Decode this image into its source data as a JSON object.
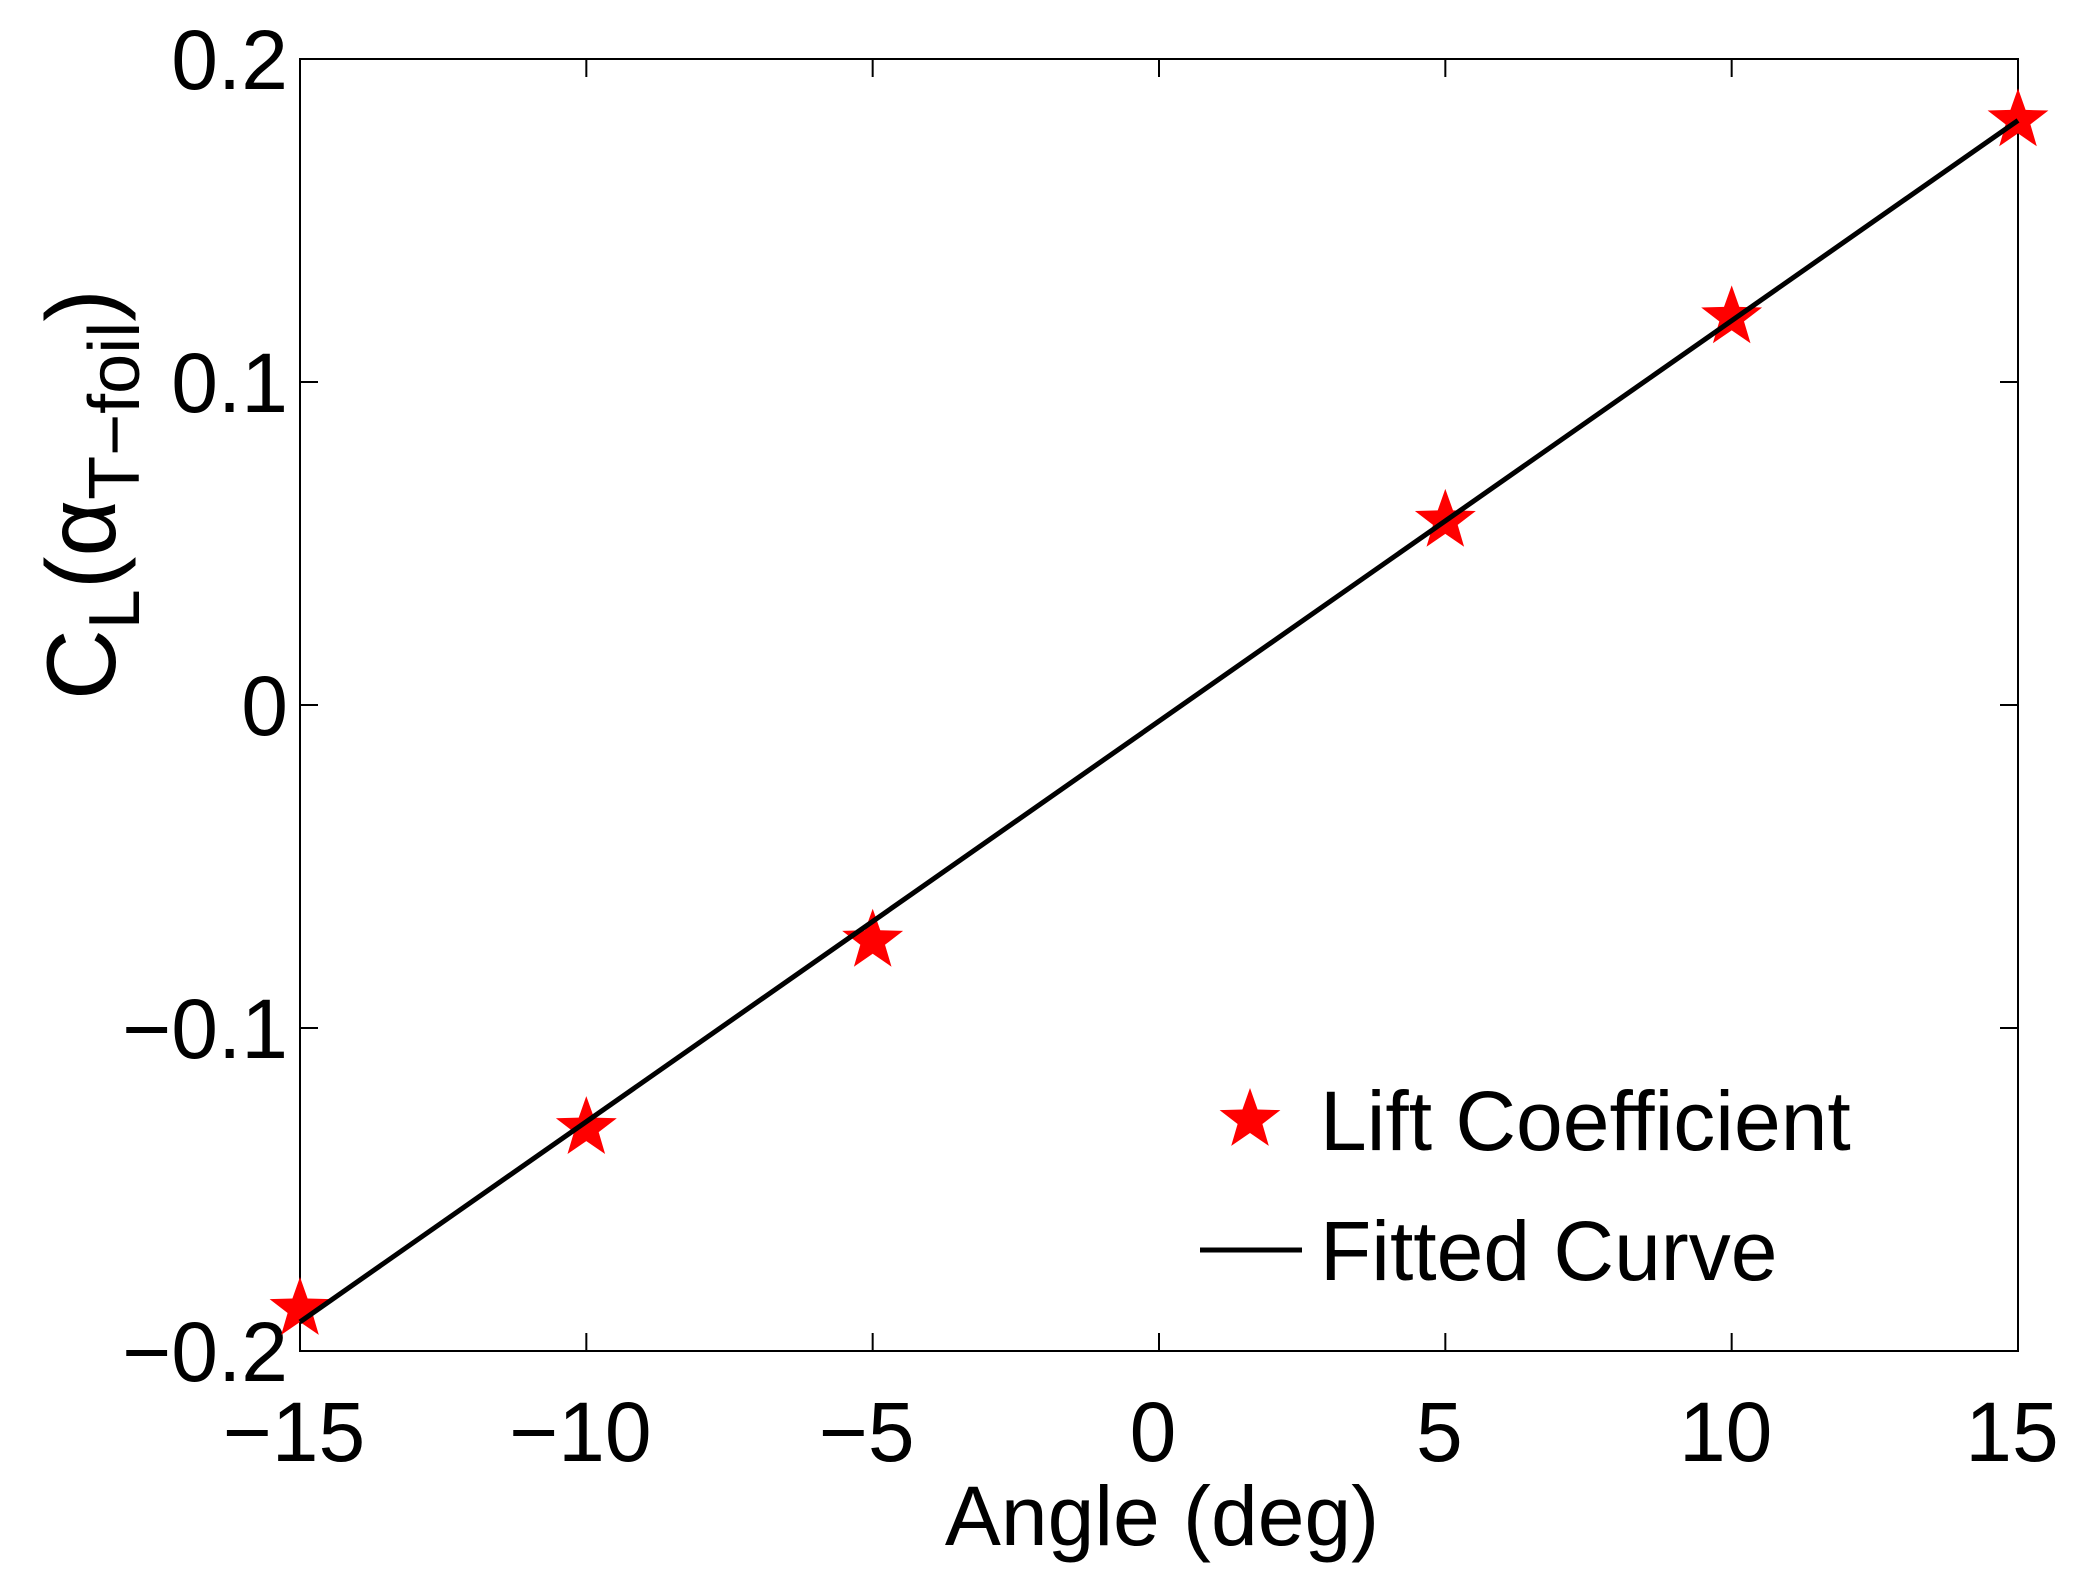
{
  "chart_data": {
    "type": "scatter",
    "title": "",
    "xlabel": "Angle (deg)",
    "ylabel": {
      "main": "C",
      "sub_main": "L",
      "paren_open": "(",
      "alpha": "α",
      "sub_alpha": "T−foil",
      "paren_close": ")"
    },
    "xlim": [
      -15,
      15
    ],
    "ylim": [
      -0.2,
      0.2
    ],
    "xticks": [
      -15,
      -10,
      -5,
      0,
      5,
      10,
      15
    ],
    "xtick_labels": [
      "−15",
      "−10",
      "−5",
      "0",
      "5",
      "10",
      "15"
    ],
    "yticks": [
      -0.2,
      -0.1,
      0,
      0.1,
      0.2
    ],
    "ytick_labels": [
      "−0.2",
      "−0.1",
      "0",
      "0.1",
      "0.2"
    ],
    "grid": false,
    "legend_position": "bottom-right",
    "series": [
      {
        "name": "Lift Coefficient",
        "kind": "marker",
        "marker": "star",
        "color": "#ff0000",
        "x": [
          -15,
          -10,
          -5,
          5,
          10,
          15
        ],
        "y": [
          -0.187,
          -0.131,
          -0.073,
          0.057,
          0.12,
          0.181
        ]
      },
      {
        "name": "Fitted Curve",
        "kind": "line",
        "color": "#000000",
        "x": [
          -15,
          15
        ],
        "y": [
          -0.191,
          0.181
        ]
      }
    ]
  }
}
